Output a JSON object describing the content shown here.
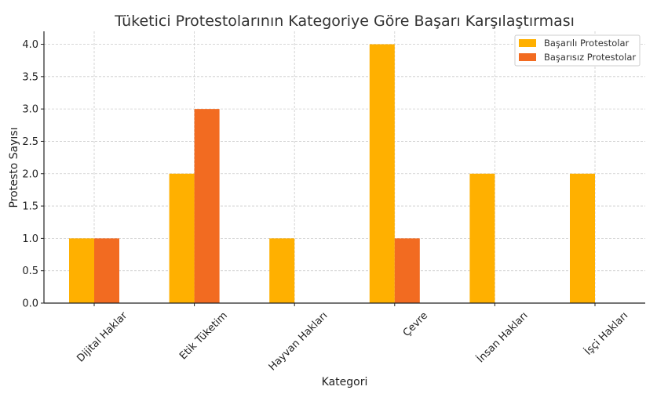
{
  "chart_data": {
    "type": "bar",
    "title": "Tüketici Protestolarının Kategoriye Göre Başarı Karşılaştırması",
    "xlabel": "Kategori",
    "ylabel": "Protesto Sayısı",
    "categories": [
      "Dijital Haklar",
      "Etik Tüketim",
      "Hayvan Hakları",
      "Çevre",
      "İnsan Hakları",
      "İşçi Hakları"
    ],
    "series": [
      {
        "name": "Başarılı Protestolar",
        "values": [
          1,
          2,
          1,
          4,
          2,
          2
        ],
        "color": "#FFB000"
      },
      {
        "name": "Başarısız Protestolar",
        "values": [
          1,
          3,
          0,
          1,
          0,
          0
        ],
        "color": "#F26B21"
      }
    ],
    "ylim": [
      0,
      4.2
    ],
    "yticks": [
      "0.0",
      "0.5",
      "1.0",
      "1.5",
      "2.0",
      "2.5",
      "3.0",
      "3.5",
      "4.0"
    ],
    "ytick_values": [
      0,
      0.5,
      1.0,
      1.5,
      2.0,
      2.5,
      3.0,
      3.5,
      4.0
    ],
    "grid": true,
    "legend_position": "top-right"
  }
}
